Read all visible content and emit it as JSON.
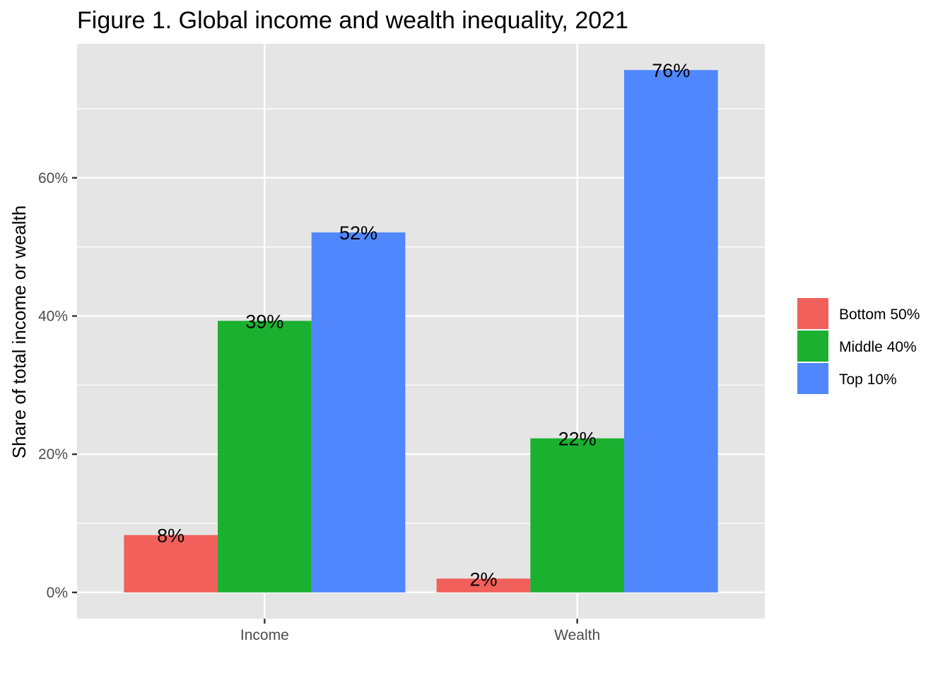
{
  "chart_data": {
    "type": "bar",
    "title": "Figure 1. Global income and wealth inequality, 2021",
    "xlabel": "",
    "ylabel": "Share of total income or wealth",
    "categories": [
      "Income",
      "Wealth"
    ],
    "series": [
      {
        "name": "Bottom 50%",
        "color": "#F8766D",
        "fill": "#F2605B",
        "values": [
          8.3,
          2.0
        ],
        "labels": [
          "8%",
          "2%"
        ]
      },
      {
        "name": "Middle 40%",
        "color": "#1BB02F",
        "fill": "#1BB02F",
        "values": [
          39.3,
          22.3
        ],
        "labels": [
          "39%",
          "22%"
        ]
      },
      {
        "name": "Top 10%",
        "color": "#5087FF",
        "fill": "#5087FF",
        "values": [
          52.1,
          75.6
        ],
        "labels": [
          "52%",
          "76%"
        ]
      }
    ],
    "yticks": [
      0,
      20,
      40,
      60
    ],
    "ytick_labels": [
      "0%",
      "20%",
      "40%",
      "60%"
    ],
    "ylim": [
      -3.8,
      79.4
    ],
    "grid": true,
    "legend_position": "right",
    "colors": {
      "panel": "#E5E5E5",
      "grid": "#FFFFFF"
    }
  }
}
